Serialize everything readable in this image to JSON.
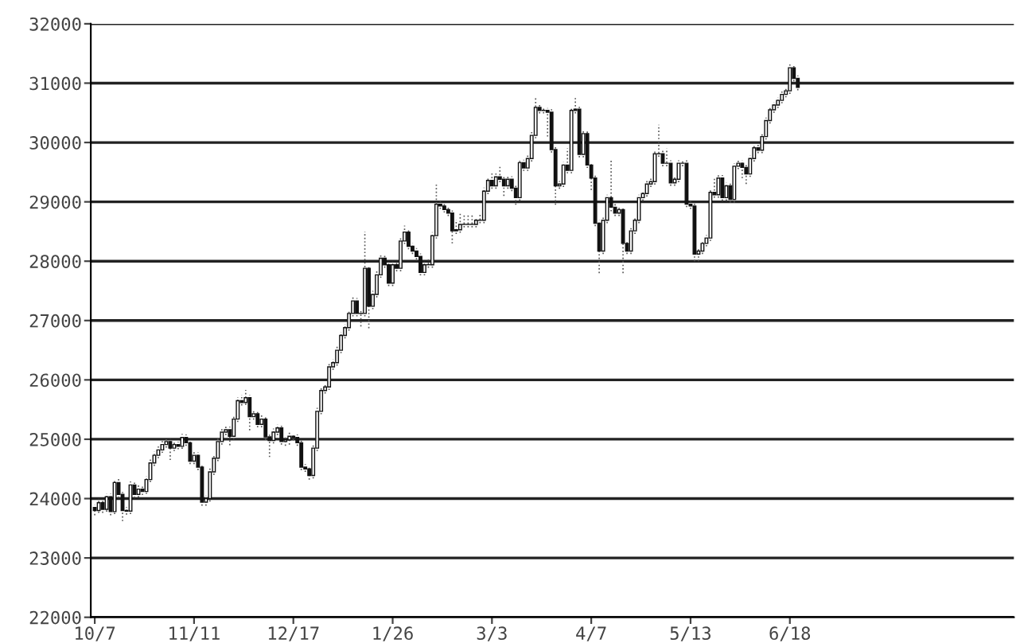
{
  "chart_data": {
    "type": "candlestick",
    "categories": [
      "10/7",
      null,
      null,
      null,
      null,
      null,
      null,
      null,
      null,
      null,
      null,
      null,
      null,
      null,
      null,
      null,
      null,
      null,
      null,
      null,
      null,
      null,
      null,
      null,
      null,
      "11/11",
      null,
      null,
      null,
      null,
      null,
      null,
      null,
      null,
      null,
      null,
      null,
      null,
      null,
      null,
      null,
      null,
      null,
      null,
      null,
      null,
      null,
      null,
      null,
      null,
      "12/17",
      null,
      null,
      null,
      null,
      null,
      null,
      null,
      null,
      null,
      null,
      null,
      null,
      null,
      null,
      null,
      null,
      null,
      null,
      null,
      null,
      null,
      null,
      null,
      null,
      "1/26",
      null,
      null,
      null,
      null,
      null,
      null,
      null,
      null,
      null,
      null,
      null,
      null,
      null,
      null,
      null,
      null,
      null,
      null,
      null,
      null,
      null,
      null,
      null,
      null,
      "3/3",
      null,
      null,
      null,
      null,
      null,
      null,
      null,
      null,
      null,
      null,
      null,
      null,
      null,
      null,
      null,
      null,
      null,
      null,
      null,
      null,
      null,
      null,
      null,
      null,
      "4/7",
      null,
      null,
      null,
      null,
      null,
      null,
      null,
      null,
      null,
      null,
      null,
      null,
      null,
      null,
      null,
      null,
      null,
      null,
      null,
      null,
      null,
      null,
      null,
      null,
      "5/13",
      null,
      null,
      null,
      null,
      null,
      null,
      null,
      null,
      null,
      null,
      null,
      null,
      null,
      null,
      null,
      null,
      null,
      null,
      null,
      null,
      null,
      null,
      null,
      null,
      "6/18",
      null,
      null
    ],
    "ohlc": [
      [
        23850,
        23900,
        23720,
        23800
      ],
      [
        23800,
        24000,
        23760,
        23930
      ],
      [
        23930,
        23980,
        23760,
        23820
      ],
      [
        23820,
        24080,
        23780,
        24030
      ],
      [
        24030,
        24080,
        23720,
        23780
      ],
      [
        23780,
        24330,
        23740,
        24270
      ],
      [
        24270,
        24330,
        24010,
        24070
      ],
      [
        24070,
        24110,
        23620,
        23800
      ],
      [
        23800,
        23860,
        23730,
        23790
      ],
      [
        23790,
        24290,
        23740,
        24230
      ],
      [
        24230,
        24280,
        24010,
        24070
      ],
      [
        24070,
        24220,
        24020,
        24160
      ],
      [
        24160,
        24210,
        24060,
        24120
      ],
      [
        24120,
        24380,
        24080,
        24320
      ],
      [
        24320,
        24660,
        24280,
        24600
      ],
      [
        24600,
        24790,
        24550,
        24730
      ],
      [
        24730,
        24880,
        24680,
        24820
      ],
      [
        24820,
        24970,
        24770,
        24910
      ],
      [
        24910,
        25020,
        24860,
        24960
      ],
      [
        24960,
        25010,
        24650,
        24850
      ],
      [
        24850,
        24970,
        24800,
        24910
      ],
      [
        24910,
        24960,
        24830,
        24880
      ],
      [
        24880,
        25090,
        24840,
        25030
      ],
      [
        25030,
        25080,
        24890,
        24940
      ],
      [
        24940,
        24990,
        24580,
        24630
      ],
      [
        24630,
        24790,
        24580,
        24730
      ],
      [
        24730,
        24780,
        24480,
        24530
      ],
      [
        24530,
        24580,
        23880,
        23940
      ],
      [
        23940,
        24060,
        23880,
        24000
      ],
      [
        24000,
        24510,
        23950,
        24450
      ],
      [
        24450,
        24740,
        24400,
        24680
      ],
      [
        24680,
        25020,
        24630,
        24960
      ],
      [
        24960,
        25180,
        24910,
        25120
      ],
      [
        25120,
        25220,
        25070,
        25160
      ],
      [
        25160,
        25210,
        24900,
        25050
      ],
      [
        25050,
        25400,
        25000,
        25340
      ],
      [
        25340,
        25710,
        25290,
        25650
      ],
      [
        25650,
        25750,
        25570,
        25620
      ],
      [
        25620,
        25830,
        25580,
        25700
      ],
      [
        25700,
        25750,
        25150,
        25380
      ],
      [
        25380,
        25490,
        25330,
        25430
      ],
      [
        25430,
        25480,
        25200,
        25250
      ],
      [
        25250,
        25400,
        25200,
        25340
      ],
      [
        25340,
        25390,
        24990,
        25040
      ],
      [
        25040,
        25090,
        24700,
        24980
      ],
      [
        24980,
        25180,
        24930,
        25120
      ],
      [
        25120,
        25250,
        25070,
        25190
      ],
      [
        25190,
        25240,
        24910,
        24960
      ],
      [
        24960,
        25040,
        24890,
        24990
      ],
      [
        24990,
        25110,
        24910,
        25050
      ],
      [
        25050,
        25100,
        24980,
        25030
      ],
      [
        25030,
        25080,
        24890,
        24940
      ],
      [
        24940,
        24990,
        24480,
        24530
      ],
      [
        24530,
        24580,
        24450,
        24500
      ],
      [
        24500,
        24550,
        24320,
        24390
      ],
      [
        24390,
        24900,
        24340,
        24850
      ],
      [
        24850,
        25530,
        24800,
        25470
      ],
      [
        25470,
        25880,
        25420,
        25820
      ],
      [
        25820,
        25940,
        25770,
        25880
      ],
      [
        25880,
        26280,
        25830,
        26220
      ],
      [
        26220,
        26350,
        26170,
        26290
      ],
      [
        26290,
        26560,
        26240,
        26500
      ],
      [
        26500,
        26810,
        26450,
        26750
      ],
      [
        26750,
        26940,
        26700,
        26880
      ],
      [
        26880,
        27180,
        26830,
        27120
      ],
      [
        27120,
        27390,
        27070,
        27330
      ],
      [
        27330,
        27380,
        27070,
        27120
      ],
      [
        27120,
        27170,
        26900,
        27120
      ],
      [
        27120,
        28500,
        27070,
        27880
      ],
      [
        27880,
        27930,
        26870,
        27240
      ],
      [
        27240,
        27500,
        27190,
        27440
      ],
      [
        27440,
        27830,
        27390,
        27770
      ],
      [
        27770,
        28110,
        27720,
        28050
      ],
      [
        28050,
        28100,
        27890,
        27940
      ],
      [
        27940,
        27990,
        27580,
        27630
      ],
      [
        27630,
        28000,
        27580,
        27940
      ],
      [
        27940,
        27990,
        27830,
        27880
      ],
      [
        27880,
        28400,
        27830,
        28340
      ],
      [
        28340,
        28600,
        28290,
        28490
      ],
      [
        28490,
        28540,
        28200,
        28250
      ],
      [
        28250,
        28300,
        28120,
        28170
      ],
      [
        28170,
        28220,
        28030,
        28080
      ],
      [
        28080,
        28130,
        27760,
        27810
      ],
      [
        27810,
        28000,
        27760,
        27940
      ],
      [
        27940,
        28050,
        27890,
        27940
      ],
      [
        27940,
        28490,
        27890,
        28430
      ],
      [
        28430,
        29300,
        28380,
        28960
      ],
      [
        28960,
        29010,
        28880,
        28930
      ],
      [
        28930,
        28980,
        28820,
        28870
      ],
      [
        28870,
        28920,
        28760,
        28810
      ],
      [
        28810,
        28860,
        28300,
        28510
      ],
      [
        28510,
        28700,
        28460,
        28530
      ],
      [
        28530,
        28800,
        28480,
        28620
      ],
      [
        28620,
        28800,
        28570,
        28620
      ],
      [
        28620,
        28800,
        28570,
        28620
      ],
      [
        28620,
        28800,
        28570,
        28620
      ],
      [
        28620,
        28740,
        28570,
        28690
      ],
      [
        28690,
        28800,
        28640,
        28690
      ],
      [
        28690,
        29240,
        28640,
        29180
      ],
      [
        29180,
        29420,
        29130,
        29360
      ],
      [
        29360,
        29500,
        29220,
        29270
      ],
      [
        29270,
        29480,
        29220,
        29420
      ],
      [
        29420,
        29600,
        29330,
        29380
      ],
      [
        29380,
        29450,
        29100,
        29270
      ],
      [
        29270,
        29440,
        29220,
        29380
      ],
      [
        29380,
        29430,
        29180,
        29230
      ],
      [
        29230,
        29280,
        28950,
        29070
      ],
      [
        29070,
        29720,
        29020,
        29660
      ],
      [
        29660,
        29710,
        29520,
        29570
      ],
      [
        29570,
        29790,
        29520,
        29730
      ],
      [
        29730,
        30180,
        29680,
        30120
      ],
      [
        30120,
        30750,
        30070,
        30590
      ],
      [
        30590,
        30640,
        30490,
        30540
      ],
      [
        30540,
        30600,
        30490,
        30540
      ],
      [
        30540,
        30580,
        30100,
        30510
      ],
      [
        30510,
        30560,
        29830,
        29880
      ],
      [
        29880,
        29930,
        28950,
        29270
      ],
      [
        29270,
        29350,
        29220,
        29300
      ],
      [
        29300,
        29670,
        29250,
        29620
      ],
      [
        29620,
        29900,
        29480,
        29530
      ],
      [
        29530,
        30590,
        29480,
        30540
      ],
      [
        30540,
        30780,
        30490,
        30560
      ],
      [
        30560,
        30610,
        29750,
        29800
      ],
      [
        29800,
        30200,
        29750,
        30150
      ],
      [
        30150,
        30200,
        29570,
        29620
      ],
      [
        29620,
        29670,
        29200,
        29400
      ],
      [
        29400,
        29450,
        28590,
        28640
      ],
      [
        28640,
        28690,
        27800,
        28170
      ],
      [
        28170,
        28740,
        28120,
        28690
      ],
      [
        28690,
        29120,
        28640,
        29070
      ],
      [
        29070,
        29700,
        28840,
        28910
      ],
      [
        28910,
        28960,
        28760,
        28810
      ],
      [
        28810,
        28920,
        28760,
        28870
      ],
      [
        28870,
        28920,
        27800,
        28300
      ],
      [
        28300,
        28350,
        28120,
        28170
      ],
      [
        28170,
        28560,
        28120,
        28510
      ],
      [
        28510,
        28740,
        28460,
        28690
      ],
      [
        28690,
        29120,
        28640,
        29070
      ],
      [
        29070,
        29190,
        29020,
        29140
      ],
      [
        29140,
        29350,
        29090,
        29300
      ],
      [
        29300,
        29390,
        29250,
        29340
      ],
      [
        29340,
        29860,
        29290,
        29810
      ],
      [
        29810,
        30300,
        29760,
        29810
      ],
      [
        29810,
        29860,
        29600,
        29650
      ],
      [
        29650,
        29900,
        29600,
        29650
      ],
      [
        29650,
        29700,
        29270,
        29320
      ],
      [
        29320,
        29430,
        29270,
        29380
      ],
      [
        29380,
        29700,
        29330,
        29650
      ],
      [
        29650,
        29700,
        29600,
        29650
      ],
      [
        29650,
        29700,
        28910,
        28960
      ],
      [
        28960,
        29010,
        28880,
        28930
      ],
      [
        28930,
        28980,
        28000,
        28120
      ],
      [
        28120,
        28220,
        28000,
        28170
      ],
      [
        28170,
        28350,
        28120,
        28300
      ],
      [
        28300,
        28440,
        28250,
        28390
      ],
      [
        28390,
        29210,
        28340,
        29160
      ],
      [
        29160,
        29400,
        29070,
        29120
      ],
      [
        29120,
        29450,
        29070,
        29400
      ],
      [
        29400,
        29450,
        29020,
        29070
      ],
      [
        29070,
        29320,
        29020,
        29270
      ],
      [
        29270,
        29320,
        28990,
        29040
      ],
      [
        29040,
        29650,
        28990,
        29600
      ],
      [
        29600,
        29700,
        29550,
        29650
      ],
      [
        29650,
        29700,
        29400,
        29580
      ],
      [
        29580,
        29630,
        29300,
        29470
      ],
      [
        29470,
        29780,
        29420,
        29730
      ],
      [
        29730,
        29960,
        29680,
        29910
      ],
      [
        29910,
        29960,
        29820,
        29870
      ],
      [
        29870,
        30150,
        29820,
        30100
      ],
      [
        30100,
        30420,
        30050,
        30370
      ],
      [
        30370,
        30600,
        30320,
        30550
      ],
      [
        30550,
        30680,
        30500,
        30630
      ],
      [
        30630,
        30760,
        30580,
        30710
      ],
      [
        30710,
        30860,
        30660,
        30810
      ],
      [
        30810,
        30920,
        30760,
        30870
      ],
      [
        30870,
        31350,
        30820,
        31260
      ],
      [
        31260,
        31310,
        31030,
        31080
      ],
      [
        31080,
        31130,
        30880,
        30930
      ]
    ],
    "ylim": [
      22000,
      32000
    ],
    "yticks": [
      22000,
      23000,
      24000,
      25000,
      26000,
      27000,
      28000,
      29000,
      30000,
      31000,
      32000
    ],
    "grid": "y"
  }
}
